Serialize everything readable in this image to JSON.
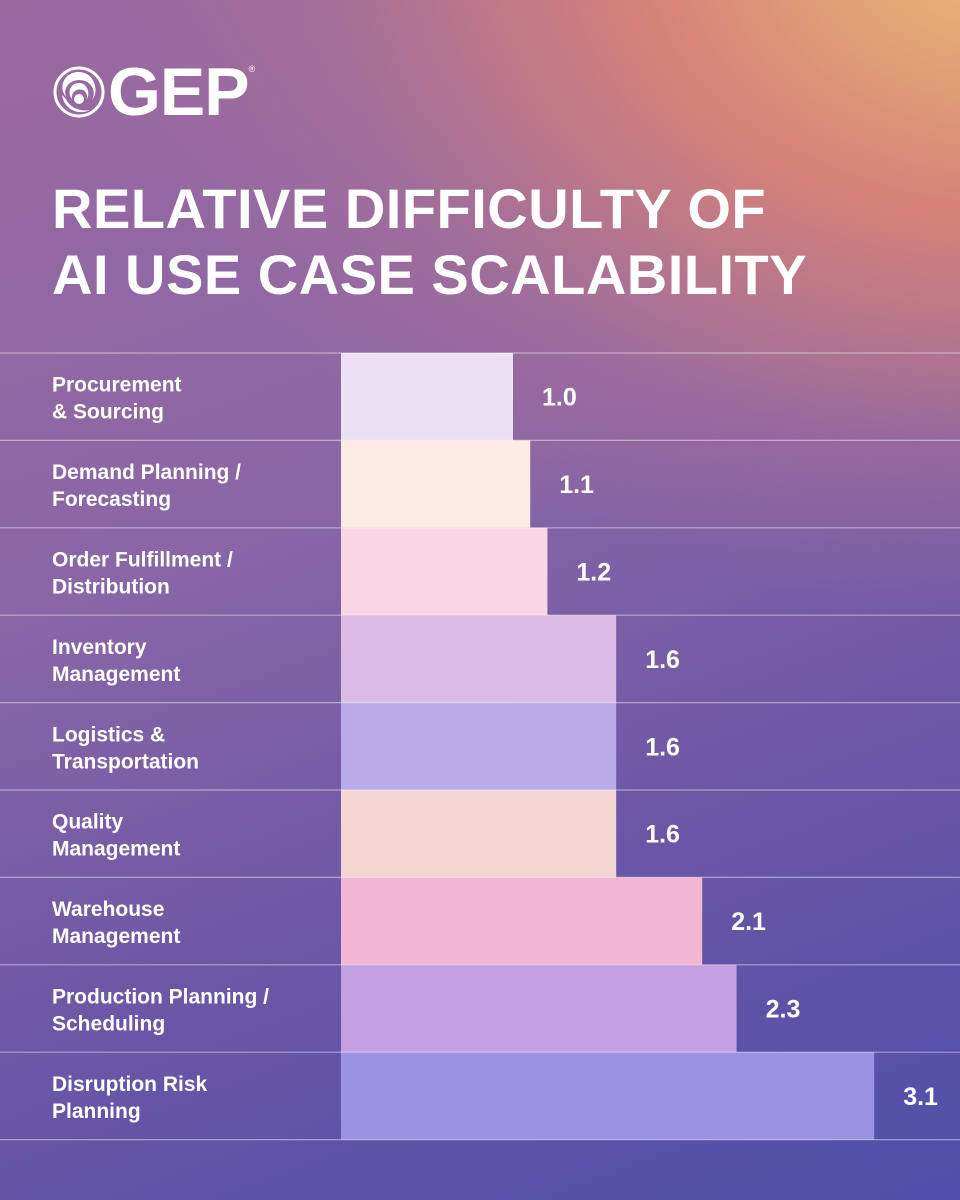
{
  "brand": {
    "name": "GEP",
    "registered": "®"
  },
  "title_lines": [
    "RELATIVE DIFFICULTY OF",
    "AI USE CASE SCALABILITY"
  ],
  "chart_data": {
    "type": "bar",
    "orientation": "horizontal",
    "title": "RELATIVE DIFFICULTY OF AI USE CASE SCALABILITY",
    "categories": [
      [
        "Procurement",
        "& Sourcing"
      ],
      [
        "Demand Planning /",
        "Forecasting"
      ],
      [
        "Order Fulfillment /",
        "Distribution"
      ],
      [
        "Inventory",
        "Management"
      ],
      [
        "Logistics &",
        "Transportation"
      ],
      [
        "Quality",
        "Management"
      ],
      [
        "Warehouse",
        "Management"
      ],
      [
        "Production Planning /",
        "Scheduling"
      ],
      [
        "Disruption Risk",
        "Planning"
      ]
    ],
    "values": [
      1.0,
      1.1,
      1.2,
      1.6,
      1.6,
      1.6,
      2.1,
      2.3,
      3.1
    ],
    "value_labels": [
      "1.0",
      "1.1",
      "1.2",
      "1.6",
      "1.6",
      "1.6",
      "2.1",
      "2.3",
      "3.1"
    ],
    "bar_colors": [
      "#ece0f5",
      "#fbebe3",
      "#f8d6e3",
      "#dbbbe5",
      "#b9aae8",
      "#f4d5d2",
      "#f0b6d3",
      "#c19fe0",
      "#9b92e4"
    ],
    "grid": "horizontal row dividers"
  }
}
